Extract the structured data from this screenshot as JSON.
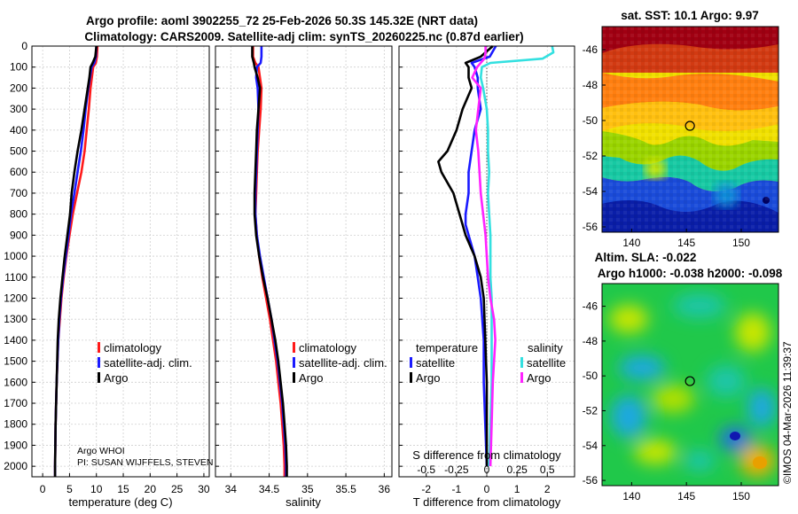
{
  "header": {
    "title_line1": "Argo profile: aoml 3902255_72 25-Feb-2026 50.3S 145.32E (NRT data)",
    "title_line2": "Climatology: CARS2009. Satellite-adj clim: synTS_20260225.nc (0.87d earlier)"
  },
  "credit": {
    "stamp": "©IMOS 04-Mar-2026 11:39:37",
    "float_info_1": "Argo WHOI",
    "float_info_2": "PI: SUSAN WIJFFELS, STEVEN"
  },
  "colors": {
    "climatology": "#ff1a1a",
    "satellite_adj": "#1a1aff",
    "argo": "#000000",
    "diff_t_sat": "#1a1aff",
    "diff_s_sat": "#33e0e0",
    "diff_s_argo": "#ff22ff"
  },
  "chart_data": [
    {
      "type": "line",
      "id": "temperature",
      "xlabel": "temperature (deg C)",
      "xlim": [
        -2,
        31
      ],
      "ylim": [
        2050,
        0
      ],
      "xticks": [
        0,
        5,
        10,
        15,
        20,
        25,
        30
      ],
      "yticks": [
        0,
        100,
        200,
        300,
        400,
        500,
        600,
        700,
        800,
        900,
        1000,
        1100,
        1200,
        1300,
        1400,
        1500,
        1600,
        1700,
        1800,
        1900,
        2000
      ],
      "legend": [
        "climatology",
        "satellite-adj. clim.",
        "Argo"
      ],
      "series": [
        {
          "name": "climatology",
          "color_key": "climatology",
          "depth": [
            0,
            50,
            80,
            100,
            200,
            300,
            400,
            500,
            600,
            700,
            800,
            900,
            1000,
            1100,
            1200,
            1300,
            1400,
            1600,
            1800,
            2000,
            2050
          ],
          "values": [
            10.2,
            10.1,
            9.9,
            9.4,
            8.9,
            8.6,
            8.2,
            7.8,
            7.2,
            6.4,
            5.6,
            5.0,
            4.4,
            3.9,
            3.5,
            3.2,
            2.9,
            2.6,
            2.4,
            2.3,
            2.3
          ]
        },
        {
          "name": "satellite-adj. clim.",
          "color_key": "satellite_adj",
          "depth": [
            0,
            50,
            80,
            100,
            200,
            300,
            400,
            500,
            600,
            700,
            800,
            900,
            1000,
            1100,
            1200,
            1300,
            1400,
            1600,
            1800,
            2000,
            2050
          ],
          "values": [
            10.0,
            9.9,
            9.6,
            9.1,
            8.5,
            8.0,
            7.6,
            7.1,
            6.5,
            5.9,
            5.3,
            4.8,
            4.3,
            3.8,
            3.4,
            3.1,
            2.9,
            2.6,
            2.4,
            2.3,
            2.3
          ]
        },
        {
          "name": "Argo",
          "color_key": "argo",
          "depth": [
            0,
            50,
            80,
            100,
            150,
            200,
            300,
            400,
            500,
            600,
            700,
            800,
            900,
            1000,
            1100,
            1200,
            1300,
            1400,
            1600,
            1800,
            2000,
            2050
          ],
          "values": [
            10.0,
            9.8,
            9.3,
            8.9,
            8.7,
            8.4,
            7.8,
            7.2,
            6.5,
            5.9,
            5.4,
            5.1,
            4.6,
            4.1,
            3.7,
            3.3,
            3.0,
            2.8,
            2.6,
            2.4,
            2.3,
            2.3
          ]
        }
      ]
    },
    {
      "type": "line",
      "id": "salinity",
      "xlabel": "salinity",
      "xlim": [
        33.8,
        36.1
      ],
      "ylim": [
        2050,
        0
      ],
      "xticks": [
        34,
        34.5,
        35,
        35.5,
        36
      ],
      "legend": [
        "climatology",
        "satellite-adj. clim.",
        "Argo"
      ],
      "series": [
        {
          "name": "climatology",
          "color_key": "climatology",
          "depth": [
            0,
            50,
            80,
            100,
            150,
            200,
            300,
            400,
            500,
            600,
            700,
            800,
            900,
            1000,
            1100,
            1200,
            1300,
            1400,
            1500,
            1600,
            1700,
            1800,
            1900,
            2000,
            2050
          ],
          "values": [
            34.29,
            34.29,
            34.32,
            34.36,
            34.38,
            34.4,
            34.39,
            34.37,
            34.35,
            34.34,
            34.33,
            34.32,
            34.34,
            34.37,
            34.41,
            34.46,
            34.51,
            34.55,
            34.59,
            34.62,
            34.65,
            34.67,
            34.69,
            34.7,
            34.7
          ]
        },
        {
          "name": "satellite-adj. clim.",
          "color_key": "satellite_adj",
          "depth": [
            0,
            50,
            80,
            100,
            150,
            200,
            300,
            400,
            500,
            600,
            700,
            800,
            900,
            1000,
            1100,
            1200,
            1300,
            1400,
            1500,
            1600,
            1700,
            1800,
            1900,
            2000,
            2050
          ],
          "values": [
            34.4,
            34.4,
            34.39,
            34.34,
            34.33,
            34.35,
            34.36,
            34.35,
            34.34,
            34.33,
            34.32,
            34.32,
            34.34,
            34.38,
            34.43,
            34.48,
            34.53,
            34.57,
            34.61,
            34.64,
            34.67,
            34.69,
            34.71,
            34.72,
            34.72
          ]
        },
        {
          "name": "Argo",
          "color_key": "argo",
          "depth": [
            0,
            50,
            80,
            100,
            150,
            200,
            300,
            400,
            500,
            600,
            700,
            800,
            900,
            1000,
            1100,
            1200,
            1300,
            1400,
            1500,
            1600,
            1700,
            1800,
            1900,
            2000,
            2050
          ],
          "values": [
            34.28,
            34.28,
            34.3,
            34.31,
            34.35,
            34.38,
            34.36,
            34.34,
            34.33,
            34.32,
            34.31,
            34.31,
            34.33,
            34.37,
            34.42,
            34.48,
            34.53,
            34.58,
            34.62,
            34.65,
            34.68,
            34.7,
            34.72,
            34.73,
            34.73
          ]
        }
      ]
    },
    {
      "type": "line",
      "id": "difference",
      "xlabel": "T difference from climatology",
      "xlim": [
        -2.9,
        2.9
      ],
      "ylim": [
        2050,
        0
      ],
      "xticks": [
        -2,
        -1,
        0,
        1,
        2
      ],
      "secondary_label": "S difference from climatology",
      "secondary_ticks": [
        "-0.5",
        "-0.25",
        "0",
        "0.25",
        "0.5"
      ],
      "legend_temperature_title": "temperature",
      "legend_salinity_title": "salinity",
      "legend_temperature": [
        "satellite",
        "Argo"
      ],
      "legend_salinity": [
        "satellite",
        "Argo"
      ],
      "series": [
        {
          "name": "T satellite",
          "color_key": "satellite_adj",
          "depth": [
            0,
            50,
            80,
            100,
            150,
            200,
            300,
            400,
            500,
            600,
            700,
            800,
            850,
            900,
            1000,
            1100,
            1200,
            1400,
            1600,
            1800,
            2000
          ],
          "values": [
            0.3,
            0.1,
            -0.5,
            -0.4,
            -0.3,
            -0.3,
            -0.2,
            -0.4,
            -0.5,
            -0.6,
            -0.6,
            -0.7,
            -0.7,
            -0.6,
            -0.4,
            -0.3,
            -0.2,
            -0.1,
            -0.1,
            -0.05,
            0.0
          ]
        },
        {
          "name": "T Argo",
          "color_key": "argo",
          "depth": [
            0,
            50,
            80,
            100,
            150,
            200,
            300,
            400,
            500,
            550,
            600,
            700,
            800,
            850,
            900,
            1000,
            1100,
            1200,
            1400,
            1600,
            1800,
            2000
          ],
          "values": [
            0.2,
            -0.2,
            -0.7,
            -0.6,
            -0.6,
            -0.5,
            -0.8,
            -1.0,
            -1.3,
            -1.6,
            -1.5,
            -1.1,
            -0.9,
            -0.8,
            -0.7,
            -0.4,
            -0.2,
            -0.1,
            -0.05,
            0.0,
            0.0,
            0.0
          ]
        },
        {
          "name": "S satellite",
          "color_key": "diff_s_sat",
          "depth": [
            0,
            30,
            60,
            80,
            100,
            150,
            200,
            300,
            400,
            500,
            600,
            700,
            800,
            900,
            1000,
            1100,
            1200,
            1300,
            1400,
            1600,
            1800,
            2000
          ],
          "values": [
            0.54,
            0.55,
            0.46,
            0.03,
            -0.04,
            -0.05,
            -0.03,
            0.0,
            0.01,
            0.01,
            0.02,
            0.01,
            0.02,
            0.03,
            0.03,
            0.03,
            0.04,
            0.04,
            0.04,
            0.04,
            0.03,
            0.02
          ]
        },
        {
          "name": "S Argo",
          "color_key": "diff_s_argo",
          "depth": [
            0,
            30,
            60,
            100,
            150,
            200,
            300,
            400,
            500,
            600,
            700,
            800,
            900,
            1000,
            1100,
            1200,
            1300,
            1400,
            1500,
            1600,
            1800,
            2000
          ],
          "values": [
            -0.01,
            -0.01,
            -0.02,
            -0.08,
            -0.12,
            -0.05,
            -0.07,
            -0.09,
            -0.07,
            -0.06,
            -0.05,
            -0.03,
            -0.01,
            0.0,
            0.01,
            0.03,
            0.06,
            0.07,
            0.06,
            0.05,
            0.04,
            0.03
          ]
        }
      ]
    },
    {
      "type": "heatmap",
      "id": "sst_map",
      "title": "sat. SST: 10.1 Argo: 9.97",
      "xlim": [
        137.3,
        153.4
      ],
      "ylim": [
        -56.3,
        -44.7
      ],
      "xticks": [
        140,
        145,
        150
      ],
      "yticks": [
        -46,
        -48,
        -50,
        -52,
        -54,
        -56
      ],
      "float_position": [
        145.32,
        -50.3
      ]
    },
    {
      "type": "heatmap",
      "id": "sla_map",
      "title_line1": "Altim. SLA: -0.022",
      "title_line2": "Argo h1000: -0.038 h2000: -0.098",
      "xlim": [
        137.3,
        153.4
      ],
      "ylim": [
        -56.3,
        -44.7
      ],
      "xticks": [
        140,
        145,
        150
      ],
      "yticks": [
        -46,
        -48,
        -50,
        -52,
        -54,
        -56
      ],
      "float_position": [
        145.32,
        -50.3
      ]
    }
  ]
}
